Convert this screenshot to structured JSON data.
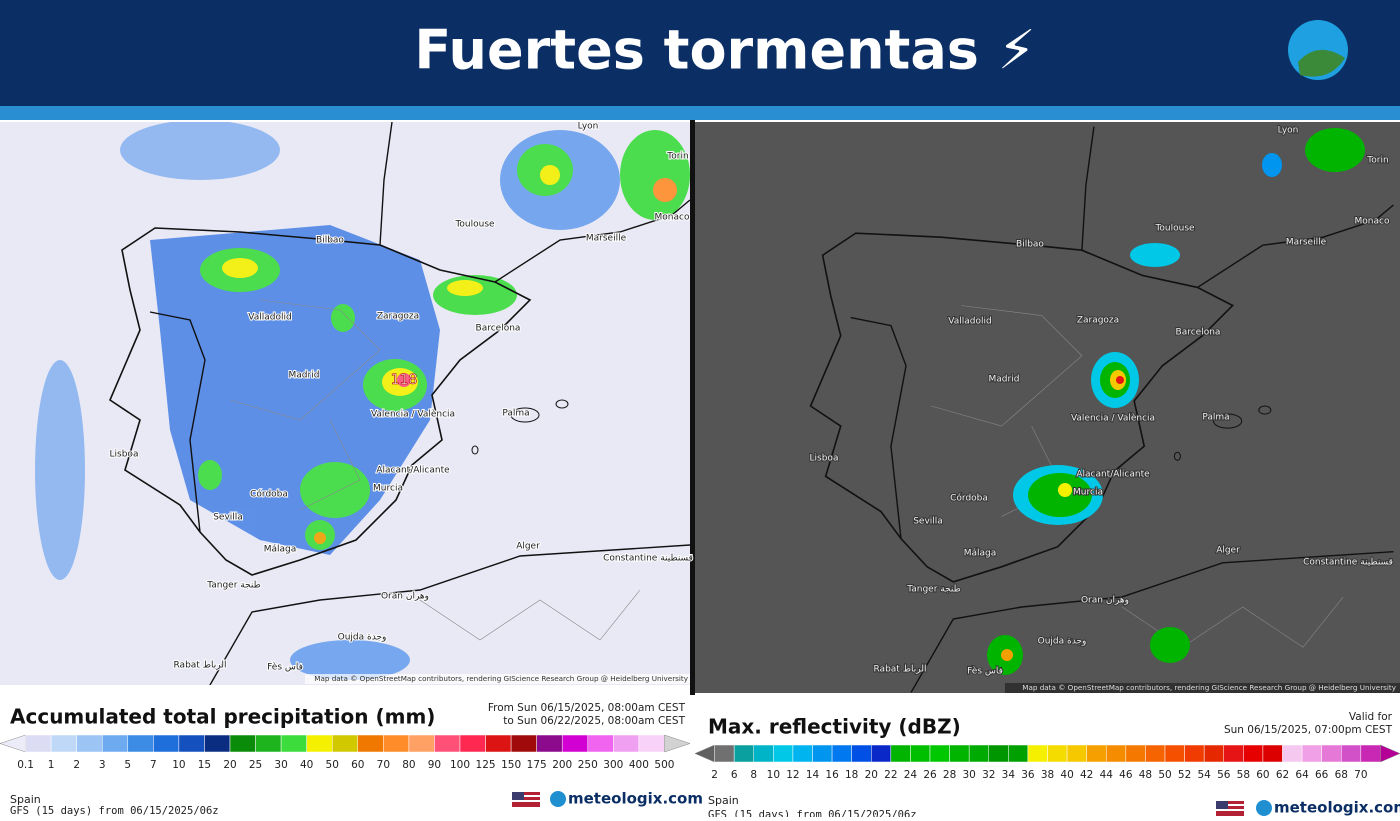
{
  "header": {
    "title": "Fuertes tormentas ⚡"
  },
  "maps": [
    {
      "cities": [
        "Lyon",
        "Torin",
        "Toulouse",
        "Marseille",
        "Monaco",
        "Bilbao",
        "Zaragoza",
        "Barcelona",
        "Valladolid",
        "Madrid",
        "Valencia / València",
        "Palma",
        "Lisboa",
        "Córdoba",
        "Alacant/Alicante",
        "Murcia",
        "Sevilla",
        "Málaga",
        "Alger",
        "Constantine قسنطينة",
        "Tanger طنجة",
        "Oran وهران",
        "Oujda وجدة",
        "Rabat الرباط",
        "Fès فاس"
      ],
      "peak": "118",
      "attribution": "Map data © OpenStreetMap contributors, rendering GIScience Research Group @ Heidelberg University",
      "background": "#e9e9f6"
    },
    {
      "cities": [
        "Lyon",
        "Torin",
        "Toulouse",
        "Marseille",
        "Monaco",
        "Bilbao",
        "Zaragoza",
        "Barcelona",
        "Valladolid",
        "Madrid",
        "Valencia / València",
        "Palma",
        "Lisboa",
        "Córdoba",
        "Alacant/Alicante",
        "Murcia",
        "Sevilla",
        "Málaga",
        "Alger",
        "Constantine قسنطينة",
        "Tanger طنجة",
        "Oran وهران",
        "Oujda وجدة",
        "Rabat الرباط",
        "Fès فاس"
      ],
      "attribution": "Map data © OpenStreetMap contributors, rendering GIScience Research Group @ Heidelberg University",
      "background": "#555555"
    }
  ],
  "legends": [
    {
      "title": "Accumulated total precipitation (mm)",
      "period": [
        "From Sun 06/15/2025, 08:00am CEST",
        "to Sun 06/22/2025, 08:00am CEST"
      ],
      "ticks": [
        0.1,
        1,
        2,
        3,
        5,
        7,
        10,
        15,
        20,
        25,
        30,
        40,
        50,
        60,
        70,
        80,
        90,
        100,
        125,
        150,
        175,
        200,
        250,
        300,
        400,
        500
      ],
      "colors": [
        "#ececf8",
        "#dcdcf5",
        "#c0d8f8",
        "#9cc4f5",
        "#6eaaf0",
        "#3c8ce6",
        "#1e6edc",
        "#1450be",
        "#0a2d82",
        "#0a8c0a",
        "#1eb41e",
        "#3cdc3c",
        "#f5f000",
        "#d2c800",
        "#f07800",
        "#ff8c28",
        "#ffa064",
        "#ff5078",
        "#ff2850",
        "#dc1414",
        "#a00a0a",
        "#8c0a8c",
        "#d200d2",
        "#f064f0",
        "#f0a0f0",
        "#f8d2f8",
        "#d2d2d2"
      ],
      "region": "Spain",
      "model": "GFS (15 days) from 06/15/2025/06z",
      "brand": "meteologix.com"
    },
    {
      "title": "Max. reflectivity (dBZ)",
      "period": [
        "Valid for",
        "Sun 06/15/2025, 07:00pm CEST"
      ],
      "ticks": [
        2,
        6,
        8,
        10,
        12,
        14,
        16,
        18,
        20,
        22,
        24,
        26,
        28,
        30,
        32,
        34,
        36,
        38,
        40,
        42,
        44,
        46,
        48,
        50,
        52,
        54,
        56,
        58,
        60,
        62,
        64,
        66,
        68,
        70
      ],
      "colors": [
        "#606060",
        "#707070",
        "#0aa0a0",
        "#00b4c8",
        "#00c8e6",
        "#00b4f0",
        "#0096f0",
        "#0078f0",
        "#0050e6",
        "#0a28c8",
        "#00b400",
        "#00be00",
        "#00c800",
        "#00b400",
        "#00aa00",
        "#009600",
        "#00a000",
        "#f5f000",
        "#f5dc00",
        "#f5c800",
        "#f5a000",
        "#f58c00",
        "#f57800",
        "#f56400",
        "#f55000",
        "#f03c00",
        "#e62800",
        "#e61414",
        "#e60000",
        "#dc0000",
        "#f5c8f0",
        "#f0a0e6",
        "#e678d8",
        "#d250c8",
        "#c828b4",
        "#b40096"
      ],
      "region": "Spain",
      "model": "GFS (15 days) from 06/15/2025/06z",
      "brand": "meteologix.com"
    }
  ]
}
